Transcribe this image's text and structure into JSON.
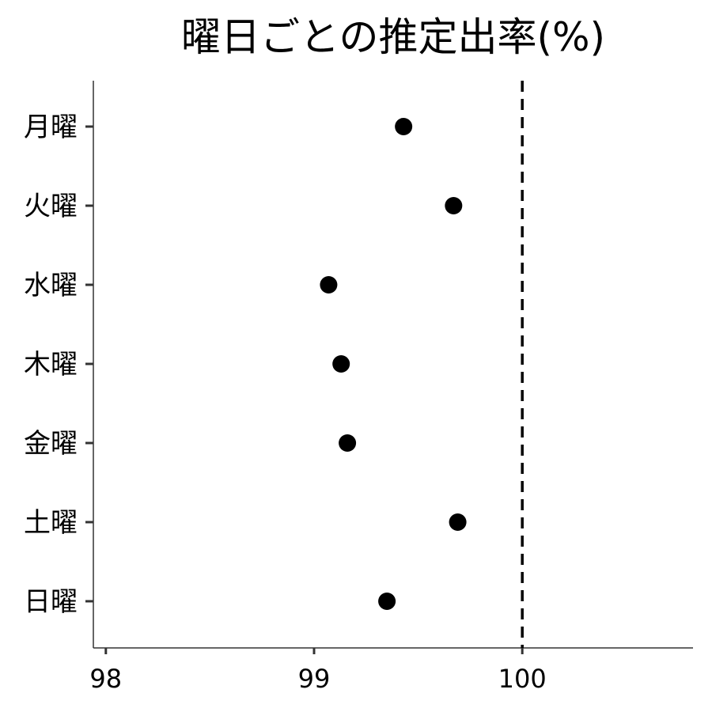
{
  "chart_data": {
    "type": "scatter",
    "title": "曜日ごとの推定出率(%)",
    "xlabel": "",
    "ylabel": "",
    "categories": [
      "月曜",
      "火曜",
      "水曜",
      "木曜",
      "金曜",
      "土曜",
      "日曜"
    ],
    "values": [
      99.43,
      99.67,
      99.07,
      99.13,
      99.16,
      99.69,
      99.35
    ],
    "xlim": [
      97.94,
      100.82
    ],
    "xticks": [
      98,
      99,
      100
    ],
    "xtick_labels": [
      "98",
      "99",
      "100"
    ],
    "reference_line": {
      "x": 100,
      "style": "dashed"
    },
    "grid": false,
    "legend": "none"
  }
}
